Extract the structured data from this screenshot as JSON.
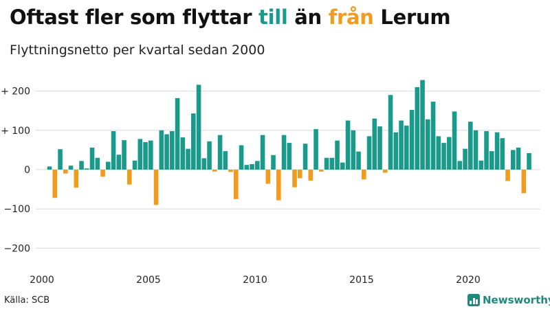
{
  "title": {
    "part1": "Oftast fler som flyttar ",
    "till": "till",
    "mid": " än ",
    "fran": "från",
    "end": " Lerum"
  },
  "subtitle": "Flyttningsnetto per kvartal sedan 2000",
  "source": "Källa: SCB",
  "brand": "Newsworthy",
  "colors": {
    "positive": "#1a9a8a",
    "negative": "#f29c1f",
    "grid": "#d9d9d9"
  },
  "chart_data": {
    "type": "bar",
    "x_start_year": 2000,
    "quarters_per_year": 4,
    "ylim": [
      -220,
      240
    ],
    "yticks": [
      200,
      100,
      0,
      -100,
      -200
    ],
    "ytick_labels": [
      "+ 200",
      "+ 100",
      "0",
      "−100",
      "−200"
    ],
    "xticks": [
      "2000",
      "2005",
      "2010",
      "2015",
      "2020"
    ],
    "values": [
      0,
      8,
      -72,
      52,
      -10,
      10,
      -46,
      22,
      3,
      56,
      30,
      -18,
      20,
      98,
      38,
      75,
      -38,
      23,
      78,
      70,
      74,
      -90,
      100,
      90,
      98,
      182,
      82,
      53,
      143,
      216,
      29,
      72,
      -5,
      88,
      47,
      -6,
      -75,
      62,
      12,
      14,
      22,
      88,
      -36,
      37,
      -78,
      88,
      68,
      -45,
      -22,
      66,
      -28,
      103,
      -5,
      30,
      30,
      74,
      18,
      125,
      100,
      46,
      -25,
      85,
      130,
      110,
      -8,
      190,
      95,
      125,
      112,
      152,
      210,
      228,
      128,
      173,
      85,
      68,
      83,
      148,
      22,
      53,
      122,
      100,
      23,
      98,
      47,
      95,
      80,
      -29,
      50,
      56,
      -60,
      42
    ]
  }
}
